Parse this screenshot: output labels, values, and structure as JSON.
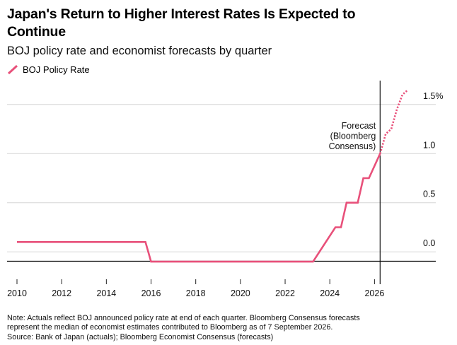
{
  "header": {
    "title_line1": "Japan's Return to Higher Interest Rates Is Expected to",
    "title_line2": "Continue",
    "subtitle": "BOJ policy rate and economist forecasts by quarter"
  },
  "legend": {
    "label": "BOJ Policy Rate",
    "color": "#e8507a"
  },
  "annotation": {
    "lines": [
      "Forecast",
      "(Bloomberg",
      "Consensus)"
    ]
  },
  "notes": {
    "line1": "Note: Actuals reflect BOJ announced policy rate at end of each quarter. Bloomberg Consensus forecasts",
    "line2": "represent the median of economist estimates contributed to Bloomberg as of 7 September 2026.",
    "line3": "Source: Bank of Japan (actuals); Bloomberg Economist Consensus (forecasts)"
  },
  "chart_data": {
    "type": "line",
    "xlabel": "",
    "ylabel": "",
    "xlim": [
      2010,
      2027.9
    ],
    "ylim": [
      -0.2,
      1.7
    ],
    "x_ticks": [
      2010,
      2012,
      2014,
      2016,
      2018,
      2020,
      2022,
      2024,
      2026
    ],
    "y_ticks": [
      {
        "value": 0.0,
        "label": "0.0"
      },
      {
        "value": 0.5,
        "label": "0.5"
      },
      {
        "value": 1.0,
        "label": "1.0"
      },
      {
        "value": 1.5,
        "label": "1.5%"
      }
    ],
    "forecast_start": 2026.25,
    "series": [
      {
        "name": "BOJ Policy Rate",
        "color": "#e8507a",
        "actual": [
          [
            2010.0,
            0.1
          ],
          [
            2015.75,
            0.1
          ],
          [
            2016.0,
            -0.1
          ],
          [
            2023.25,
            -0.1
          ],
          [
            2024.25,
            0.25
          ],
          [
            2024.5,
            0.25
          ],
          [
            2024.75,
            0.5
          ],
          [
            2025.25,
            0.5
          ],
          [
            2025.5,
            0.75
          ],
          [
            2025.75,
            0.75
          ],
          [
            2026.25,
            1.0
          ]
        ],
        "forecast": [
          [
            2026.25,
            1.0
          ],
          [
            2026.5,
            1.2
          ],
          [
            2026.75,
            1.25
          ],
          [
            2027.0,
            1.45
          ],
          [
            2027.25,
            1.6
          ],
          [
            2027.5,
            1.65
          ]
        ]
      }
    ]
  }
}
